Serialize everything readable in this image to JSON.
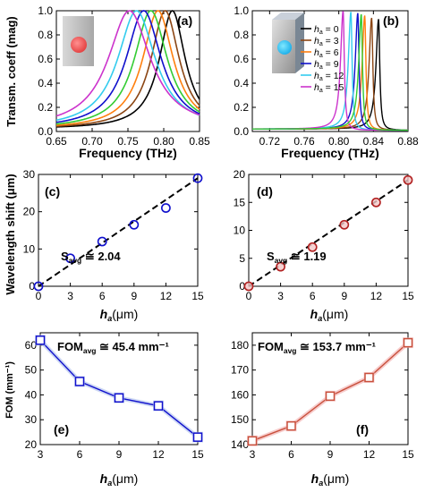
{
  "figure": {
    "shared_labels": {
      "freq_xlabel": "Frequency (THz)",
      "transm_ylabel": "Transm. coeff (mag)",
      "shift_ylabel": "Wavelength shift (μm)",
      "fom_ylabel": "FOM (mm⁻¹)",
      "ha_xlabel_main": "h",
      "ha_xlabel_sub": "a",
      "ha_xlabel_unit": "(μm)"
    },
    "colors": {
      "black": "#000000",
      "brown": "#8B4513",
      "orange": "#FF7F0E",
      "green": "#33CC33",
      "blue": "#1010CC",
      "cyan": "#33CCEE",
      "magenta": "#CC33CC",
      "fit_line": "#000000",
      "red_marker": "#B22222",
      "red_line": "#C8503C",
      "pink_glow": "#F4B6B6",
      "blue_glow": "#B8C8F0",
      "cyan_glow": "#A8D8F8"
    }
  },
  "chart_data": [
    {
      "panel": "(a)",
      "type": "line",
      "xlabel": "Frequency (THz)",
      "ylabel": "Transm. coeff (mag)",
      "xlim": [
        0.65,
        0.85
      ],
      "ylim": [
        0.0,
        1.0
      ],
      "xticks": [
        "0.65",
        "0.70",
        "0.75",
        "0.80",
        "0.85"
      ],
      "yticks": [
        "0.0",
        "0.2",
        "0.4",
        "0.6",
        "0.8",
        "1.0"
      ],
      "series": [
        {
          "color": "#000000",
          "peak": 0.812,
          "width": 0.022,
          "base": 0.02
        },
        {
          "color": "#8B4513",
          "peak": 0.802,
          "width": 0.024,
          "base": 0.02
        },
        {
          "color": "#FF7F0E",
          "peak": 0.792,
          "width": 0.026,
          "base": 0.02
        },
        {
          "color": "#33CC33",
          "peak": 0.782,
          "width": 0.028,
          "base": 0.02
        },
        {
          "color": "#1010CC",
          "peak": 0.772,
          "width": 0.03,
          "base": 0.02
        },
        {
          "color": "#33CCEE",
          "peak": 0.762,
          "width": 0.032,
          "base": 0.02
        },
        {
          "color": "#CC33CC",
          "peak": 0.752,
          "width": 0.036,
          "base": 0.02
        }
      ]
    },
    {
      "panel": "(b)",
      "type": "line",
      "xlabel": "Frequency (THz)",
      "xlim": [
        0.7,
        0.88
      ],
      "ylim": [
        0.0,
        1.0
      ],
      "xticks": [
        "0.72",
        "0.76",
        "0.80",
        "0.84",
        "0.88"
      ],
      "yticks": [
        "0.0",
        "0.2",
        "0.4",
        "0.6",
        "0.8",
        "1.0"
      ],
      "legend_title": "h",
      "legend_sub": "a",
      "series": [
        {
          "name": "= 0",
          "color": "#000000",
          "peak": 0.846,
          "width": 0.0036,
          "height": 0.93
        },
        {
          "name": "= 3",
          "color": "#8B4513",
          "peak": 0.838,
          "width": 0.0036,
          "height": 0.94
        },
        {
          "name": "= 6",
          "color": "#FF7F0E",
          "peak": 0.83,
          "width": 0.0036,
          "height": 0.96
        },
        {
          "name": "= 9",
          "color": "#1010CC",
          "peak": 0.822,
          "width": 0.0036,
          "height": 0.98
        },
        {
          "name": "= 12",
          "color": "#33CCEE",
          "peak": 0.814,
          "width": 0.0036,
          "height": 0.99
        },
        {
          "name": "= 15",
          "color": "#CC33CC",
          "peak": 0.805,
          "width": 0.0036,
          "height": 1.0
        },
        {
          "color": "#33CC33",
          "peak": 0.826,
          "width": 0.0036,
          "height": 0.97
        }
      ]
    },
    {
      "panel": "(c)",
      "type": "scatter",
      "ylabel": "Wavelength shift (μm)",
      "xlim": [
        0,
        15
      ],
      "ylim": [
        0,
        30
      ],
      "xticks": [
        "0",
        "3",
        "6",
        "9",
        "12",
        "15"
      ],
      "yticks": [
        "0",
        "10",
        "20",
        "30"
      ],
      "x": [
        0,
        3,
        6,
        9,
        12,
        15
      ],
      "y": [
        0,
        7.5,
        12.0,
        16.5,
        21.0,
        29.0
      ],
      "fit_y": [
        0,
        29.0
      ],
      "marker_color": "#1010CC",
      "annotation_main": "S",
      "annotation_sub": "avg",
      "annotation_value": "≅ 2.04"
    },
    {
      "panel": "(d)",
      "type": "scatter",
      "xlim": [
        0,
        15
      ],
      "ylim": [
        0,
        20
      ],
      "xticks": [
        "0",
        "3",
        "6",
        "9",
        "12",
        "15"
      ],
      "yticks": [
        "0",
        "5",
        "10",
        "15",
        "20"
      ],
      "x": [
        0,
        3,
        6,
        9,
        12,
        15
      ],
      "y": [
        0,
        3.5,
        7.0,
        11.0,
        15.0,
        19.0
      ],
      "fit_y": [
        0,
        19.0
      ],
      "marker_color": "#B22222",
      "annotation_main": "S",
      "annotation_sub": "avg",
      "annotation_value": "≅ 1.19"
    },
    {
      "panel": "(e)",
      "type": "line",
      "ylabel": "FOM (mm⁻¹)",
      "xlim": [
        3,
        15
      ],
      "ylim": [
        20,
        65
      ],
      "xticks": [
        "3",
        "6",
        "9",
        "12",
        "15"
      ],
      "yticks": [
        "20",
        "30",
        "40",
        "50",
        "60"
      ],
      "x": [
        3,
        6,
        9,
        12,
        15
      ],
      "y": [
        62.0,
        45.4,
        38.8,
        35.6,
        23.0
      ],
      "color": "#1010CC",
      "glow": "#B8C8F0",
      "annotation_main": "FOM",
      "annotation_sub": "avg",
      "annotation_value": "≅ 45.4 mm⁻¹"
    },
    {
      "panel": "(f)",
      "type": "line",
      "xlim": [
        3,
        15
      ],
      "ylim": [
        140,
        185
      ],
      "xticks": [
        "3",
        "6",
        "9",
        "12",
        "15"
      ],
      "yticks": [
        "140",
        "150",
        "160",
        "170",
        "180"
      ],
      "x": [
        3,
        6,
        9,
        12,
        15
      ],
      "y": [
        141.5,
        147.5,
        159.5,
        167.0,
        181.0
      ],
      "color": "#C8503C",
      "glow": "#F4B6B6",
      "annotation_main": "FOM",
      "annotation_sub": "avg",
      "annotation_value": "≅ 153.7 mm⁻¹"
    }
  ]
}
